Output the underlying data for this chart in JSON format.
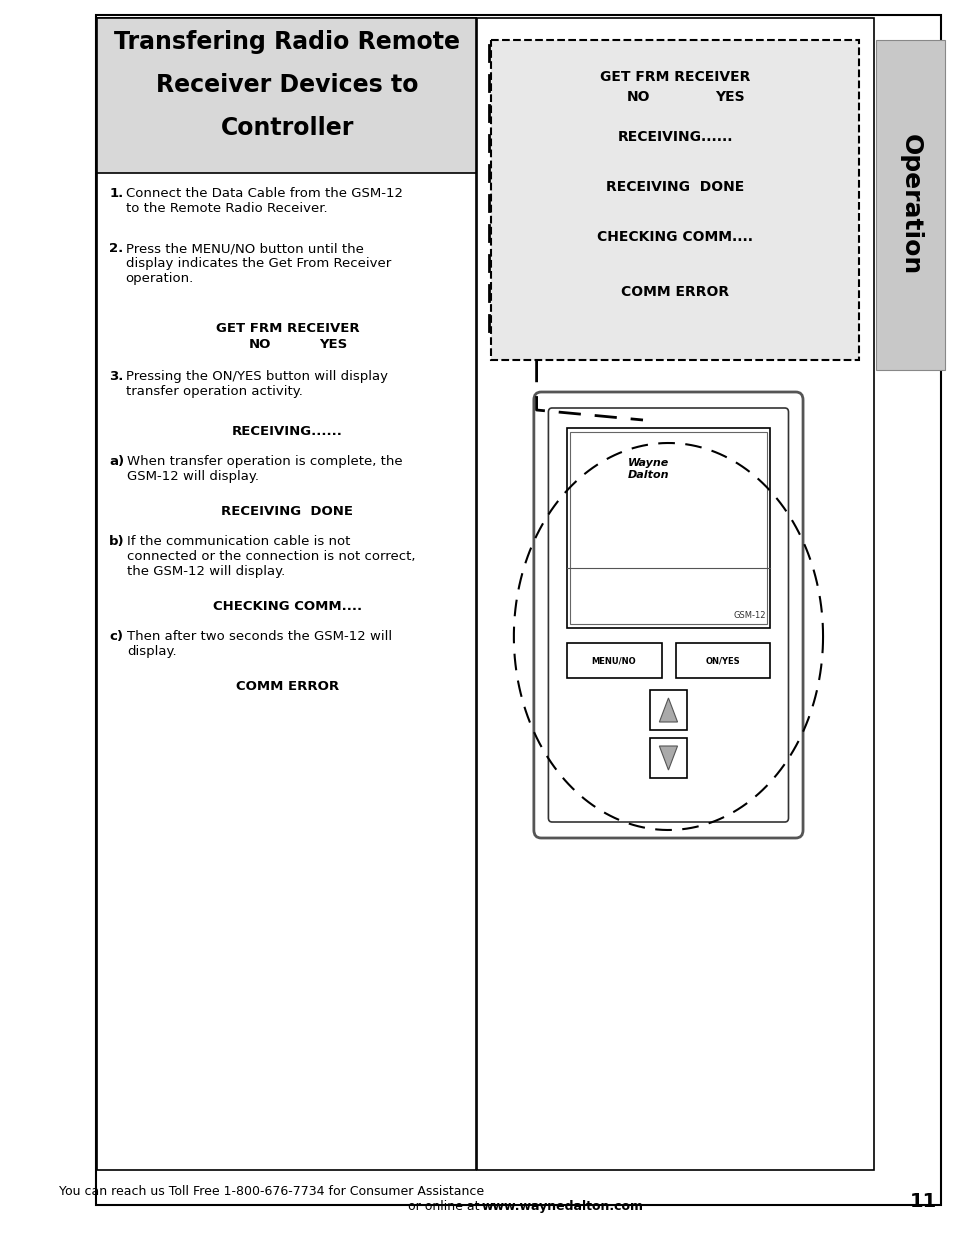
{
  "page_bg": "#ffffff",
  "outer_border_color": "#000000",
  "header_bg": "#e0e0e0",
  "header_text": "Transfering Radio Remote\nReceiver Devices to\nController",
  "header_fontsize": 18,
  "body_text_fontsize": 9.5,
  "bold_fontsize": 9.5,
  "right_tab_text": "Operation",
  "right_tab_bg": "#c8c8c8",
  "footer_text": "You can reach us Toll Free 1-800-676-7734 for Consumer Assistance\nor online at ",
  "footer_bold": "www.waynedalton.com",
  "footer_page": "11",
  "display_box_bg": "#e8e8e8",
  "display_lines": [
    "GET FRM RECEIVER",
    "NO                    YES",
    "",
    "RECEIVING......",
    "",
    "RECEIVING  DONE",
    "",
    "CHECKING COMM....",
    "",
    "COMM ERROR"
  ],
  "left_body_paragraphs": [
    {
      "type": "numbered",
      "num": "1.",
      "text": "Connect the Data Cable from the GSM-12\nto the Remote Radio Receiver."
    },
    {
      "type": "numbered",
      "num": "2.",
      "text": "Press the MENU/NO button until the\ndisplay indicates the Get From Receiver\noperation."
    },
    {
      "type": "center_bold",
      "text": "GET FRM RECEIVER\nNO              YES"
    },
    {
      "type": "numbered",
      "num": "3.",
      "text": "Pressing the ON/YES button will display\ntransfer operation activity."
    },
    {
      "type": "center_bold",
      "text": "RECEIVING......"
    },
    {
      "type": "lettered",
      "letter": "a)",
      "text": "When transfer operation is complete, the\nGSM-12 will display."
    },
    {
      "type": "center_bold",
      "text": "RECEIVING  DONE"
    },
    {
      "type": "lettered",
      "letter": "b)",
      "text": "If the communication cable is not\nconnected or the connection is not correct,\nthe GSM-12 will display."
    },
    {
      "type": "center_bold",
      "text": "CHECKING COMM...."
    },
    {
      "type": "lettered",
      "letter": "c)",
      "text": "Then after two seconds the GSM-12 will\ndisplay."
    },
    {
      "type": "center_bold",
      "text": "COMM ERROR"
    }
  ]
}
